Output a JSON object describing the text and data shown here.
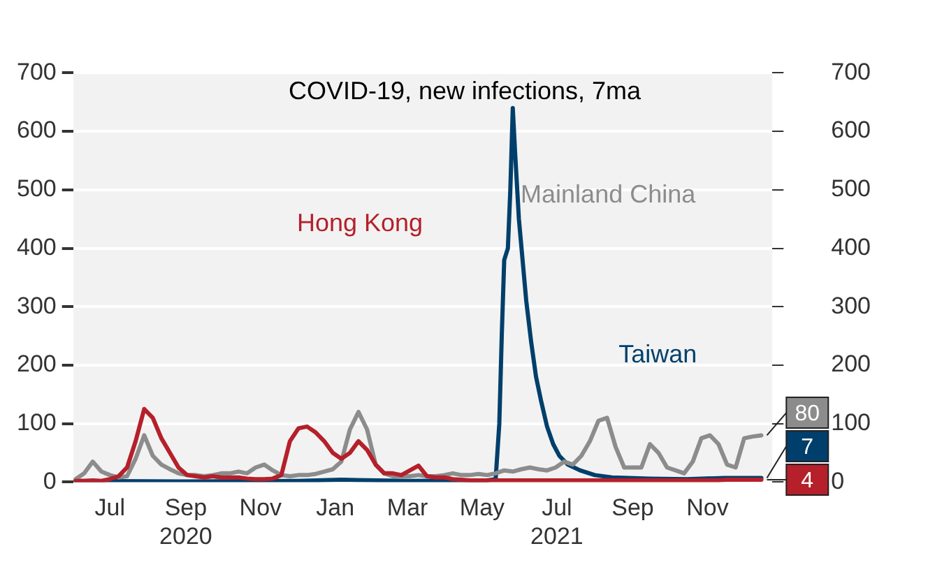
{
  "chart_data": {
    "type": "line",
    "title": "COVID-19, new infections, 7ma",
    "x": [
      "2020-06-03",
      "2020-06-10",
      "2020-06-17",
      "2020-06-24",
      "2020-07-01",
      "2020-07-08",
      "2020-07-15",
      "2020-07-22",
      "2020-07-29",
      "2020-08-05",
      "2020-08-12",
      "2020-08-19",
      "2020-08-26",
      "2020-09-02",
      "2020-09-09",
      "2020-09-16",
      "2020-09-23",
      "2020-09-30",
      "2020-10-07",
      "2020-10-14",
      "2020-10-21",
      "2020-10-28",
      "2020-11-04",
      "2020-11-11",
      "2020-11-18",
      "2020-11-25",
      "2020-12-02",
      "2020-12-09",
      "2020-12-16",
      "2020-12-23",
      "2020-12-30",
      "2021-01-06",
      "2021-01-13",
      "2021-01-20",
      "2021-01-27",
      "2021-02-03",
      "2021-02-10",
      "2021-02-17",
      "2021-02-24",
      "2021-03-03",
      "2021-03-10",
      "2021-03-17",
      "2021-03-24",
      "2021-03-31",
      "2021-04-07",
      "2021-04-14",
      "2021-04-21",
      "2021-04-28",
      "2021-05-05",
      "2021-05-12",
      "2021-05-19",
      "2021-05-26",
      "2021-06-02",
      "2021-06-09",
      "2021-06-16",
      "2021-06-23",
      "2021-06-30",
      "2021-07-07",
      "2021-07-14",
      "2021-07-21",
      "2021-07-28",
      "2021-08-04",
      "2021-08-11",
      "2021-08-18",
      "2021-08-25",
      "2021-09-01",
      "2021-09-08",
      "2021-09-15",
      "2021-09-22",
      "2021-09-29",
      "2021-10-06",
      "2021-10-13",
      "2021-10-20",
      "2021-10-27",
      "2021-11-03",
      "2021-11-10",
      "2021-11-17",
      "2021-11-24",
      "2021-12-01",
      "2021-12-08",
      "2021-12-15"
    ],
    "series": [
      {
        "name": "Hong Kong",
        "color": "#b5202a",
        "values": [
          2,
          2,
          3,
          2,
          5,
          10,
          25,
          70,
          125,
          110,
          75,
          50,
          25,
          12,
          10,
          8,
          10,
          8,
          8,
          8,
          6,
          5,
          5,
          6,
          12,
          70,
          92,
          95,
          85,
          70,
          50,
          40,
          50,
          70,
          55,
          30,
          15,
          15,
          12,
          20,
          28,
          10,
          8,
          8,
          5,
          4,
          3,
          3,
          3,
          3,
          3,
          3,
          3,
          3,
          3,
          3,
          3,
          3,
          3,
          3,
          3,
          3,
          3,
          3,
          3,
          3,
          3,
          3,
          3,
          3,
          3,
          3,
          3,
          3,
          3,
          3,
          4,
          4,
          4,
          4,
          4
        ],
        "value_labels": [
          null,
          null,
          null,
          null,
          null,
          null,
          null,
          null,
          null,
          null,
          null,
          null,
          null,
          null,
          null,
          null,
          null,
          null,
          null,
          null,
          null,
          null,
          null,
          null,
          null,
          null,
          null,
          null,
          null,
          null,
          null,
          null,
          null,
          null,
          null,
          null,
          null,
          null,
          null,
          null,
          null,
          null,
          null,
          null,
          null,
          null,
          null,
          null,
          null,
          null,
          null,
          null,
          null,
          null,
          null,
          null,
          null,
          null,
          null,
          null,
          null,
          null,
          null,
          null,
          null,
          null,
          null,
          null,
          null,
          null,
          null,
          null,
          null,
          null,
          null,
          null,
          null,
          null,
          null,
          null,
          "4"
        ]
      },
      {
        "name": "Mainland China",
        "color": "#8c8c8c",
        "values": [
          5,
          15,
          35,
          18,
          12,
          8,
          10,
          40,
          80,
          45,
          30,
          22,
          15,
          12,
          12,
          10,
          12,
          15,
          15,
          18,
          15,
          25,
          30,
          20,
          12,
          10,
          12,
          12,
          14,
          18,
          22,
          35,
          90,
          120,
          90,
          30,
          15,
          10,
          10,
          10,
          12,
          10,
          10,
          12,
          15,
          12,
          12,
          14,
          12,
          15,
          20,
          18,
          22,
          25,
          22,
          20,
          25,
          35,
          30,
          45,
          70,
          105,
          110,
          60,
          25,
          25,
          25,
          65,
          50,
          25,
          20,
          15,
          35,
          75,
          80,
          65,
          30,
          25,
          75,
          78,
          80
        ],
        "value_labels": [
          null,
          null,
          null,
          null,
          null,
          null,
          null,
          null,
          null,
          null,
          null,
          null,
          null,
          null,
          null,
          null,
          null,
          null,
          null,
          null,
          null,
          null,
          null,
          null,
          null,
          null,
          null,
          null,
          null,
          null,
          null,
          null,
          null,
          null,
          null,
          null,
          null,
          null,
          null,
          null,
          null,
          null,
          null,
          null,
          null,
          null,
          null,
          null,
          null,
          null,
          null,
          null,
          null,
          null,
          null,
          null,
          null,
          null,
          null,
          null,
          null,
          null,
          null,
          null,
          null,
          null,
          null,
          null,
          null,
          null,
          null,
          null,
          null,
          null,
          null,
          null,
          null,
          null,
          null,
          null,
          "80"
        ]
      },
      {
        "name": "Taiwan",
        "color": "#003f6b",
        "x": [
          "2020-06-03",
          "2020-09-02",
          "2020-12-02",
          "2021-01-06",
          "2021-03-03",
          "2021-05-05",
          "2021-05-12",
          "2021-05-15",
          "2021-05-17",
          "2021-05-19",
          "2021-05-22",
          "2021-05-24",
          "2021-05-26",
          "2021-05-28",
          "2021-05-31",
          "2021-06-03",
          "2021-06-06",
          "2021-06-10",
          "2021-06-14",
          "2021-06-18",
          "2021-06-23",
          "2021-06-28",
          "2021-07-03",
          "2021-07-10",
          "2021-07-20",
          "2021-08-01",
          "2021-08-15",
          "2021-09-15",
          "2021-10-15",
          "2021-11-15",
          "2021-12-15"
        ],
        "values": [
          2,
          1,
          2,
          4,
          2,
          3,
          5,
          100,
          250,
          380,
          400,
          500,
          640,
          560,
          450,
          380,
          310,
          240,
          180,
          140,
          95,
          65,
          45,
          30,
          20,
          12,
          8,
          6,
          5,
          7,
          7
        ],
        "value_labels": [
          null,
          null,
          null,
          null,
          null,
          null,
          null,
          null,
          null,
          null,
          null,
          null,
          null,
          null,
          null,
          null,
          null,
          null,
          null,
          null,
          null,
          null,
          null,
          null,
          null,
          null,
          null,
          null,
          null,
          null,
          "7"
        ]
      }
    ],
    "xlim": [
      "2020-06-01",
      "2021-12-24"
    ],
    "xticks": [
      {
        "value": "2020-07-01",
        "label": "Jul"
      },
      {
        "value": "2020-09-01",
        "label": "Sep\n2020"
      },
      {
        "value": "2020-11-01",
        "label": "Nov"
      },
      {
        "value": "2021-01-01",
        "label": "Jan"
      },
      {
        "value": "2021-03-01",
        "label": "Mar"
      },
      {
        "value": "2021-05-01",
        "label": "May"
      },
      {
        "value": "2021-07-01",
        "label": "Jul\n2021"
      },
      {
        "value": "2021-09-01",
        "label": "Sep"
      },
      {
        "value": "2021-11-01",
        "label": "Nov"
      }
    ],
    "ylim": [
      0,
      700
    ],
    "yticks": [
      0,
      100,
      200,
      300,
      400,
      500,
      600,
      700
    ],
    "y2lim": [
      0,
      700
    ],
    "y2ticks": [
      0,
      100,
      200,
      300,
      400,
      500,
      600,
      700
    ],
    "grid": "y",
    "legend": false,
    "marker": "none",
    "line_style": "solid"
  }
}
